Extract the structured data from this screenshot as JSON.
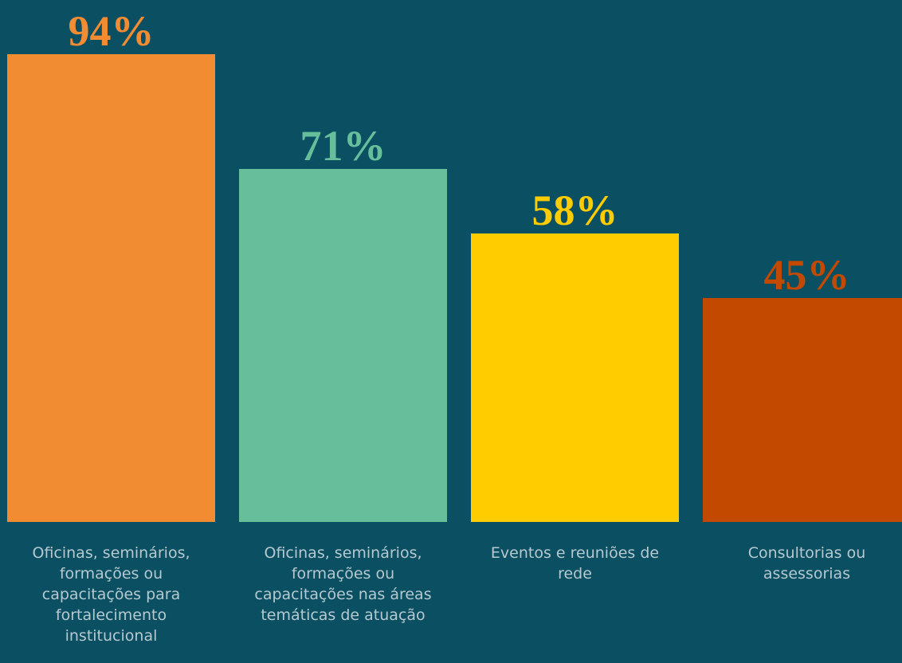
{
  "chart_data": {
    "type": "bar",
    "categories": [
      "Oficinas, seminários, formações ou capacitações para fortalecimento institucional",
      "Oficinas, seminários, formações ou capacitações nas áreas temáticas de atuação",
      "Eventos e reuniões de rede",
      "Consultorias ou assessorias"
    ],
    "values": [
      94,
      71,
      58,
      45
    ],
    "value_labels": [
      "94%",
      "71%",
      "58%",
      "45%"
    ],
    "colors": [
      "#f28c33",
      "#67be9b",
      "#ffcc00",
      "#c44900"
    ],
    "background": "#0b4f63",
    "ylim": [
      0,
      100
    ],
    "grid": false,
    "legend": "none"
  }
}
